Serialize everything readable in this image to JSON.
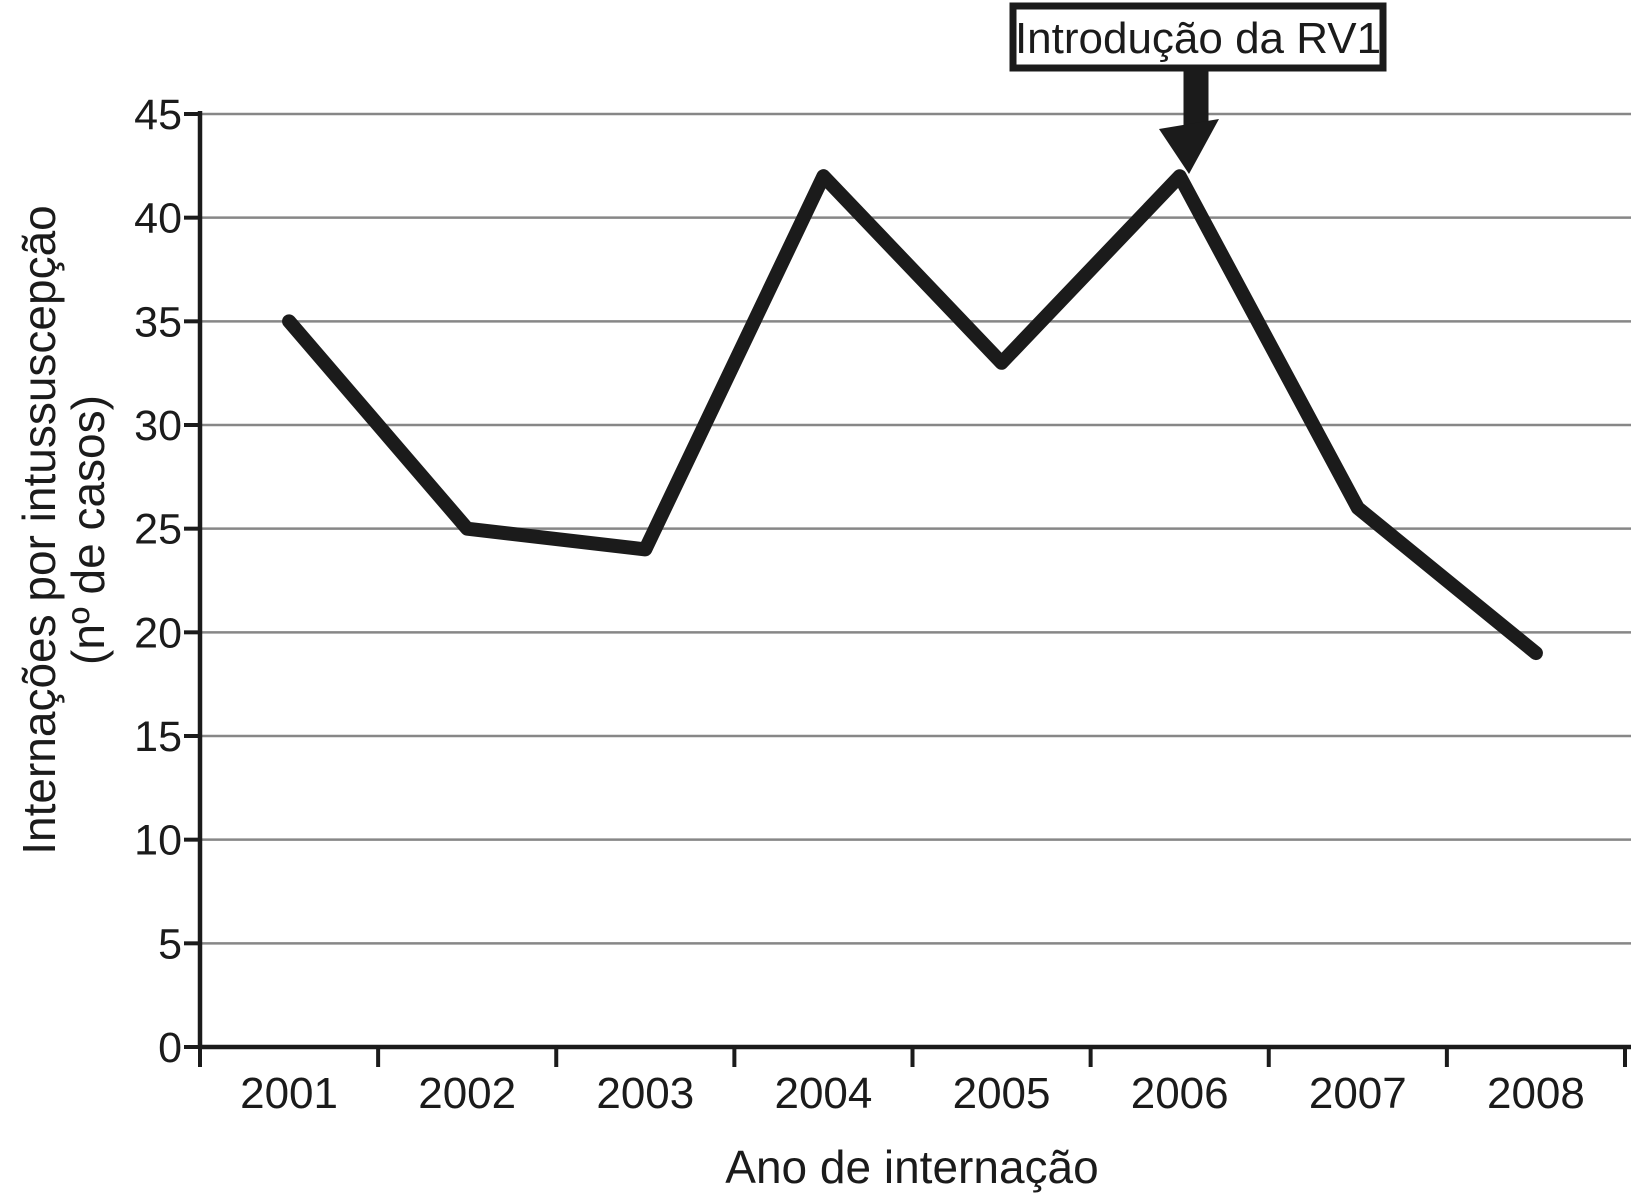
{
  "chart_data": {
    "type": "line",
    "title": "",
    "categories": [
      "2001",
      "2002",
      "2003",
      "2004",
      "2005",
      "2006",
      "2007",
      "2008"
    ],
    "values": [
      35,
      25,
      24,
      42,
      33,
      42,
      26,
      19
    ],
    "xlabel": "Ano de internação",
    "ylabel_line1": "Internações por intussuscepção",
    "ylabel_line2": "(nº de casos)",
    "ylim": [
      0,
      45
    ],
    "ytick_step": 5,
    "ytick_labels": [
      "0",
      "5",
      "10",
      "15",
      "20",
      "25",
      "30",
      "35",
      "40",
      "45"
    ],
    "grid": "horizontal-only",
    "legend": "none",
    "annotation": {
      "text": "Introdução da RV1",
      "target_category": "2006",
      "target_value": 42
    },
    "colors": {
      "line": "#1b1b1b",
      "axis": "#1b1b1b",
      "grid": "#878787",
      "text": "#1b1b1b",
      "background": "#ffffff"
    }
  }
}
